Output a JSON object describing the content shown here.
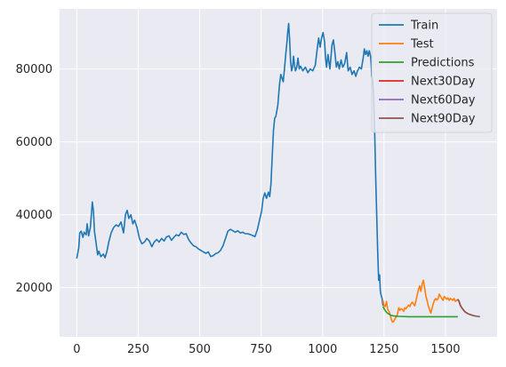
{
  "chart_data": {
    "type": "line",
    "title": "",
    "xlabel": "",
    "ylabel": "",
    "xlim": [
      -70,
      1710
    ],
    "ylim": [
      6500,
      96500
    ],
    "grid": true,
    "legend_position": "top-right",
    "x_ticks": [
      0,
      250,
      500,
      750,
      1000,
      1250,
      1500
    ],
    "x_tick_labels": [
      "0",
      "250",
      "500",
      "750",
      "1000",
      "1250",
      "1500"
    ],
    "y_ticks": [
      20000,
      40000,
      60000,
      80000
    ],
    "y_tick_labels": [
      "20000",
      "40000",
      "60000",
      "80000"
    ],
    "colors": {
      "background": "#eaeaf2",
      "grid": "#ffffff",
      "train": "#1f77b4",
      "test": "#ff7f0e",
      "predictions": "#2ca02c",
      "next30": "#d62728",
      "next60": "#9467bd",
      "next90": "#8c564b"
    },
    "series": [
      {
        "name": "Train",
        "key": "train",
        "points": [
          [
            0,
            28000
          ],
          [
            8,
            31000
          ],
          [
            12,
            35000
          ],
          [
            18,
            35500
          ],
          [
            25,
            33800
          ],
          [
            30,
            35200
          ],
          [
            38,
            34500
          ],
          [
            42,
            37500
          ],
          [
            48,
            34200
          ],
          [
            55,
            36500
          ],
          [
            60,
            40500
          ],
          [
            63,
            43500
          ],
          [
            68,
            41000
          ],
          [
            72,
            35500
          ],
          [
            78,
            32500
          ],
          [
            85,
            29000
          ],
          [
            90,
            30000
          ],
          [
            98,
            28500
          ],
          [
            108,
            29200
          ],
          [
            115,
            28200
          ],
          [
            122,
            29800
          ],
          [
            130,
            32500
          ],
          [
            140,
            35000
          ],
          [
            150,
            36500
          ],
          [
            160,
            37200
          ],
          [
            170,
            36800
          ],
          [
            180,
            38000
          ],
          [
            190,
            35000
          ],
          [
            198,
            40000
          ],
          [
            205,
            41200
          ],
          [
            212,
            39000
          ],
          [
            220,
            40000
          ],
          [
            228,
            37500
          ],
          [
            235,
            38500
          ],
          [
            245,
            36500
          ],
          [
            255,
            33500
          ],
          [
            265,
            32000
          ],
          [
            275,
            32500
          ],
          [
            285,
            33500
          ],
          [
            295,
            32800
          ],
          [
            305,
            31200
          ],
          [
            315,
            32500
          ],
          [
            325,
            33200
          ],
          [
            335,
            32500
          ],
          [
            345,
            33500
          ],
          [
            355,
            32800
          ],
          [
            365,
            33900
          ],
          [
            375,
            34200
          ],
          [
            385,
            33000
          ],
          [
            395,
            33800
          ],
          [
            405,
            34500
          ],
          [
            415,
            34200
          ],
          [
            425,
            35200
          ],
          [
            435,
            34600
          ],
          [
            445,
            34800
          ],
          [
            455,
            33200
          ],
          [
            465,
            32200
          ],
          [
            475,
            31500
          ],
          [
            485,
            31200
          ],
          [
            495,
            30600
          ],
          [
            505,
            30200
          ],
          [
            515,
            29800
          ],
          [
            525,
            29400
          ],
          [
            535,
            29800
          ],
          [
            545,
            28500
          ],
          [
            555,
            28800
          ],
          [
            565,
            29300
          ],
          [
            575,
            29600
          ],
          [
            585,
            30200
          ],
          [
            595,
            31500
          ],
          [
            605,
            33500
          ],
          [
            615,
            35500
          ],
          [
            625,
            36000
          ],
          [
            635,
            35600
          ],
          [
            645,
            35200
          ],
          [
            655,
            35600
          ],
          [
            665,
            35000
          ],
          [
            675,
            35200
          ],
          [
            685,
            34800
          ],
          [
            695,
            34800
          ],
          [
            705,
            34600
          ],
          [
            715,
            34300
          ],
          [
            725,
            34000
          ],
          [
            735,
            36000
          ],
          [
            745,
            39000
          ],
          [
            752,
            41000
          ],
          [
            758,
            44500
          ],
          [
            765,
            46000
          ],
          [
            772,
            44500
          ],
          [
            780,
            46200
          ],
          [
            785,
            45000
          ],
          [
            790,
            48500
          ],
          [
            795,
            56000
          ],
          [
            800,
            63000
          ],
          [
            805,
            66500
          ],
          [
            810,
            67000
          ],
          [
            818,
            70000
          ],
          [
            825,
            76000
          ],
          [
            830,
            78500
          ],
          [
            835,
            77500
          ],
          [
            840,
            76500
          ],
          [
            845,
            80000
          ],
          [
            850,
            84000
          ],
          [
            855,
            87500
          ],
          [
            858,
            90000
          ],
          [
            862,
            92500
          ],
          [
            866,
            88000
          ],
          [
            870,
            82000
          ],
          [
            874,
            79500
          ],
          [
            878,
            80500
          ],
          [
            882,
            83500
          ],
          [
            886,
            81000
          ],
          [
            890,
            79500
          ],
          [
            895,
            80500
          ],
          [
            900,
            83000
          ],
          [
            905,
            80000
          ],
          [
            910,
            80800
          ],
          [
            920,
            79500
          ],
          [
            930,
            80500
          ],
          [
            940,
            79000
          ],
          [
            950,
            80000
          ],
          [
            960,
            79500
          ],
          [
            970,
            81000
          ],
          [
            978,
            85500
          ],
          [
            984,
            88500
          ],
          [
            990,
            86000
          ],
          [
            996,
            88500
          ],
          [
            1002,
            90000
          ],
          [
            1008,
            87500
          ],
          [
            1012,
            83000
          ],
          [
            1016,
            80500
          ],
          [
            1022,
            84000
          ],
          [
            1030,
            80000
          ],
          [
            1038,
            86500
          ],
          [
            1044,
            88000
          ],
          [
            1050,
            84500
          ],
          [
            1056,
            80500
          ],
          [
            1062,
            82000
          ],
          [
            1068,
            80000
          ],
          [
            1075,
            82500
          ],
          [
            1082,
            80500
          ],
          [
            1090,
            81500
          ],
          [
            1098,
            84500
          ],
          [
            1104,
            79500
          ],
          [
            1112,
            80500
          ],
          [
            1120,
            78500
          ],
          [
            1128,
            79500
          ],
          [
            1135,
            78000
          ],
          [
            1142,
            79500
          ],
          [
            1150,
            80500
          ],
          [
            1158,
            80000
          ],
          [
            1165,
            83000
          ],
          [
            1170,
            85500
          ],
          [
            1175,
            84000
          ],
          [
            1180,
            85000
          ],
          [
            1185,
            83500
          ],
          [
            1190,
            85000
          ],
          [
            1195,
            83500
          ],
          [
            1198,
            81000
          ],
          [
            1200,
            78000
          ],
          [
            1204,
            77000
          ],
          [
            1208,
            72000
          ],
          [
            1212,
            62000
          ],
          [
            1216,
            50000
          ],
          [
            1220,
            40000
          ],
          [
            1224,
            30000
          ],
          [
            1228,
            22000
          ],
          [
            1232,
            23500
          ],
          [
            1235,
            19000
          ],
          [
            1238,
            18000
          ],
          [
            1242,
            17000
          ],
          [
            1246,
            15000
          ]
        ]
      },
      {
        "name": "Test",
        "key": "test",
        "points": [
          [
            1246,
            16500
          ],
          [
            1250,
            15000
          ],
          [
            1255,
            14800
          ],
          [
            1260,
            16200
          ],
          [
            1265,
            14000
          ],
          [
            1270,
            13500
          ],
          [
            1275,
            12500
          ],
          [
            1280,
            11200
          ],
          [
            1285,
            10500
          ],
          [
            1290,
            10800
          ],
          [
            1295,
            11500
          ],
          [
            1300,
            12000
          ],
          [
            1305,
            12800
          ],
          [
            1310,
            14500
          ],
          [
            1315,
            13800
          ],
          [
            1320,
            14200
          ],
          [
            1325,
            14000
          ],
          [
            1330,
            13500
          ],
          [
            1335,
            14500
          ],
          [
            1340,
            14200
          ],
          [
            1345,
            14800
          ],
          [
            1350,
            15200
          ],
          [
            1355,
            14800
          ],
          [
            1360,
            15600
          ],
          [
            1365,
            16000
          ],
          [
            1370,
            15500
          ],
          [
            1375,
            15000
          ],
          [
            1380,
            16500
          ],
          [
            1385,
            18000
          ],
          [
            1390,
            19500
          ],
          [
            1395,
            20500
          ],
          [
            1400,
            19000
          ],
          [
            1405,
            21000
          ],
          [
            1410,
            22000
          ],
          [
            1415,
            20000
          ],
          [
            1420,
            17800
          ],
          [
            1425,
            16500
          ],
          [
            1430,
            15000
          ],
          [
            1435,
            14000
          ],
          [
            1440,
            13000
          ],
          [
            1445,
            14200
          ],
          [
            1450,
            15500
          ],
          [
            1455,
            16500
          ],
          [
            1460,
            17000
          ],
          [
            1465,
            16600
          ],
          [
            1470,
            17000
          ],
          [
            1475,
            18200
          ],
          [
            1480,
            17600
          ],
          [
            1485,
            17000
          ],
          [
            1490,
            16500
          ],
          [
            1495,
            17600
          ],
          [
            1500,
            17200
          ],
          [
            1505,
            16800
          ],
          [
            1510,
            17200
          ],
          [
            1515,
            16500
          ],
          [
            1520,
            17000
          ],
          [
            1525,
            16800
          ],
          [
            1530,
            16500
          ],
          [
            1535,
            17000
          ],
          [
            1540,
            16200
          ],
          [
            1545,
            16500
          ],
          [
            1550,
            16800
          ]
        ]
      },
      {
        "name": "Predictions",
        "key": "predictions",
        "points": [
          [
            1246,
            14800
          ],
          [
            1252,
            14000
          ],
          [
            1258,
            13400
          ],
          [
            1264,
            13000
          ],
          [
            1270,
            12700
          ],
          [
            1278,
            12400
          ],
          [
            1290,
            12200
          ],
          [
            1310,
            12100
          ],
          [
            1350,
            12000
          ],
          [
            1400,
            12000
          ],
          [
            1450,
            12000
          ],
          [
            1500,
            12000
          ],
          [
            1550,
            12000
          ]
        ]
      },
      {
        "name": "Next30Day",
        "key": "next30",
        "points": [
          [
            1550,
            16800
          ],
          [
            1555,
            16200
          ],
          [
            1560,
            15200
          ],
          [
            1565,
            14600
          ],
          [
            1570,
            14100
          ],
          [
            1575,
            13700
          ],
          [
            1580,
            13300
          ]
        ]
      },
      {
        "name": "Next60Day",
        "key": "next60",
        "points": [
          [
            1550,
            16800
          ],
          [
            1555,
            16200
          ],
          [
            1560,
            15200
          ],
          [
            1565,
            14600
          ],
          [
            1570,
            14100
          ],
          [
            1575,
            13700
          ],
          [
            1580,
            13300
          ],
          [
            1590,
            12900
          ],
          [
            1600,
            12600
          ],
          [
            1610,
            12400
          ]
        ]
      },
      {
        "name": "Next90Day",
        "key": "next90",
        "points": [
          [
            1550,
            16800
          ],
          [
            1555,
            16200
          ],
          [
            1560,
            15200
          ],
          [
            1565,
            14600
          ],
          [
            1570,
            14100
          ],
          [
            1575,
            13700
          ],
          [
            1580,
            13300
          ],
          [
            1590,
            12900
          ],
          [
            1600,
            12600
          ],
          [
            1610,
            12400
          ],
          [
            1620,
            12200
          ],
          [
            1630,
            12100
          ],
          [
            1640,
            12000
          ]
        ]
      }
    ]
  }
}
